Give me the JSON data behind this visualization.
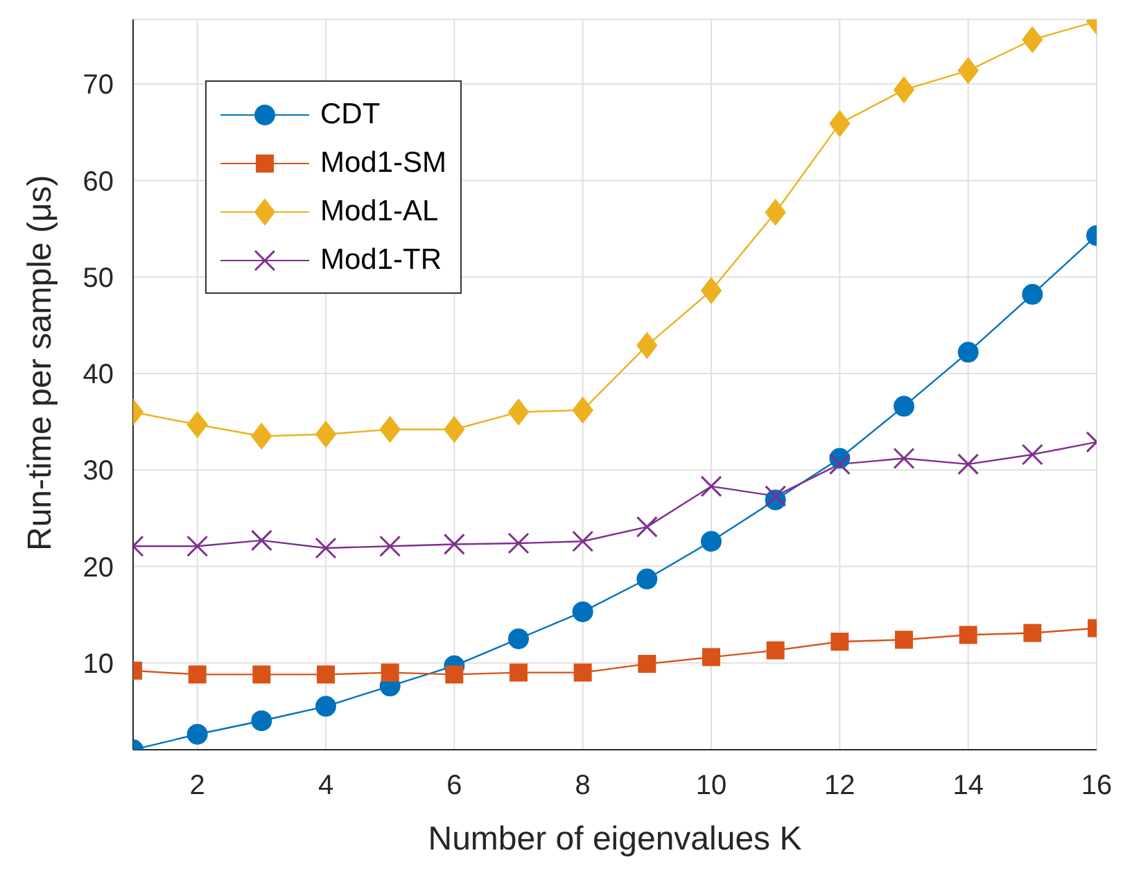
{
  "chart_data": {
    "type": "line",
    "xlabel": "Number of eigenvalues K",
    "ylabel": "Run-time per sample (μs)",
    "x": [
      1,
      2,
      3,
      4,
      5,
      6,
      7,
      8,
      9,
      10,
      11,
      12,
      13,
      14,
      15,
      16
    ],
    "series": [
      {
        "name": "CDT",
        "color": "#0072bd",
        "marker": "circle",
        "values": [
          1.0,
          2.6,
          4.0,
          5.5,
          7.6,
          9.7,
          12.5,
          15.3,
          18.7,
          22.6,
          26.9,
          31.2,
          36.6,
          42.2,
          48.2,
          54.3
        ]
      },
      {
        "name": "Mod1-SM",
        "color": "#d95319",
        "marker": "square",
        "values": [
          9.2,
          8.8,
          8.8,
          8.8,
          9.0,
          8.8,
          9.0,
          9.0,
          9.9,
          10.6,
          11.3,
          12.2,
          12.4,
          12.9,
          13.1,
          13.6
        ]
      },
      {
        "name": "Mod1-AL",
        "color": "#edb120",
        "marker": "diamond",
        "values": [
          36.0,
          34.7,
          33.5,
          33.7,
          34.2,
          34.2,
          36.0,
          36.2,
          42.9,
          48.6,
          56.7,
          65.9,
          69.4,
          71.4,
          74.6,
          76.5
        ]
      },
      {
        "name": "Mod1-TR",
        "color": "#7e2f8e",
        "marker": "cross",
        "values": [
          22.1,
          22.1,
          22.7,
          21.9,
          22.1,
          22.3,
          22.4,
          22.6,
          24.1,
          28.3,
          27.3,
          30.6,
          31.2,
          30.6,
          31.6,
          32.9
        ]
      }
    ],
    "xlim": [
      1,
      16
    ],
    "xticks": [
      2,
      4,
      6,
      8,
      10,
      12,
      14,
      16
    ],
    "ylim": [
      1,
      76.7
    ],
    "yticks": [
      10,
      20,
      30,
      40,
      50,
      60,
      70
    ],
    "grid": true,
    "legend": "top left",
    "line_style": "solid"
  }
}
